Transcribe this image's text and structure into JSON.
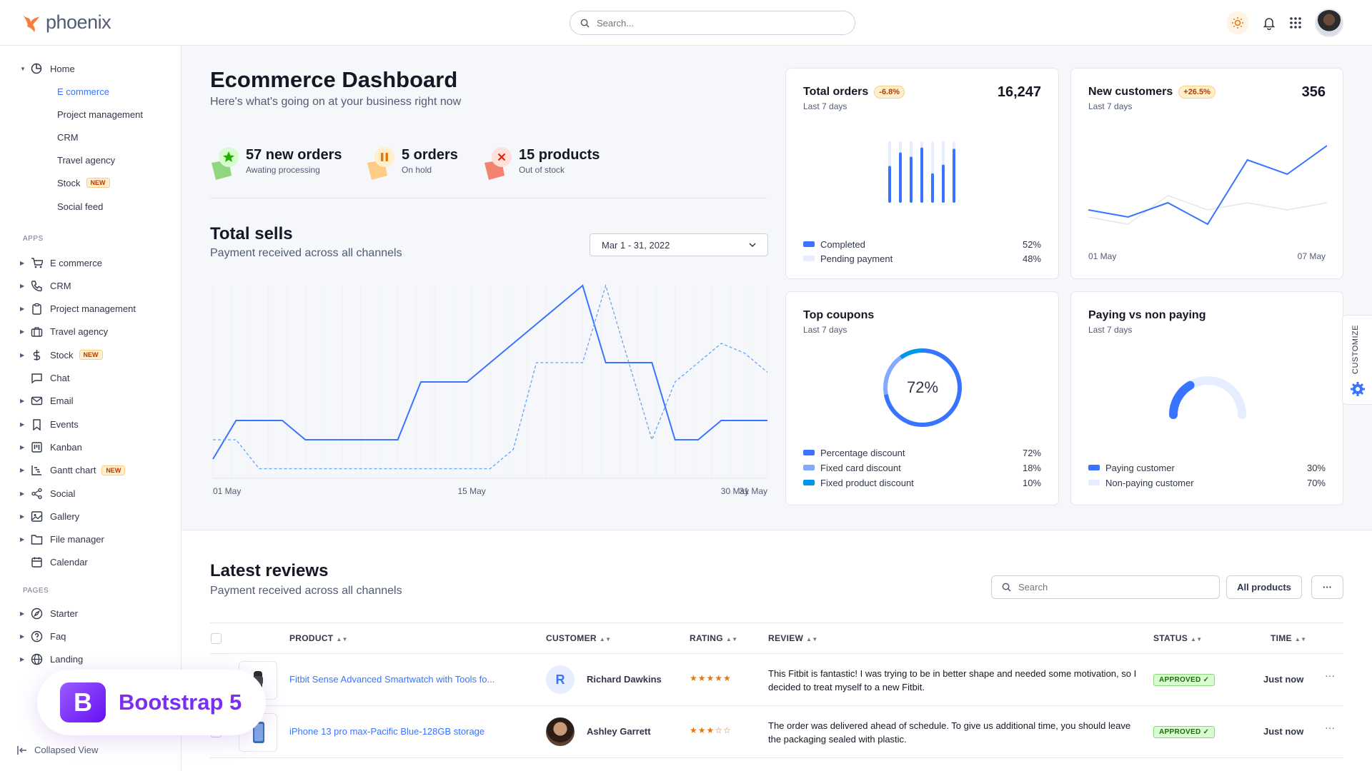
{
  "app": {
    "name": "phoenix"
  },
  "topbar": {
    "search_placeholder": "Search..."
  },
  "sidebar": {
    "home": {
      "label": "Home",
      "items": [
        {
          "label": "E commerce",
          "active": true
        },
        {
          "label": "Project management"
        },
        {
          "label": "CRM"
        },
        {
          "label": "Travel agency"
        },
        {
          "label": "Stock",
          "badge": "NEW"
        },
        {
          "label": "Social feed"
        }
      ]
    },
    "apps_label": "APPS",
    "apps": [
      {
        "label": "E commerce",
        "icon": "cart-icon"
      },
      {
        "label": "CRM",
        "icon": "phone-icon"
      },
      {
        "label": "Project management",
        "icon": "clipboard-icon"
      },
      {
        "label": "Travel agency",
        "icon": "briefcase-icon"
      },
      {
        "label": "Stock",
        "icon": "dollar-icon",
        "badge": "NEW"
      },
      {
        "label": "Chat",
        "icon": "chat-icon"
      },
      {
        "label": "Email",
        "icon": "mail-icon"
      },
      {
        "label": "Events",
        "icon": "bookmark-icon"
      },
      {
        "label": "Kanban",
        "icon": "kanban-icon"
      },
      {
        "label": "Gantt chart",
        "icon": "gantt-icon",
        "badge": "NEW"
      },
      {
        "label": "Social",
        "icon": "share-icon"
      },
      {
        "label": "Gallery",
        "icon": "image-icon"
      },
      {
        "label": "File manager",
        "icon": "folder-icon"
      },
      {
        "label": "Calendar",
        "icon": "calendar-icon"
      }
    ],
    "pages_label": "PAGES",
    "pages": [
      {
        "label": "Starter",
        "icon": "compass-icon"
      },
      {
        "label": "Faq",
        "icon": "help-icon"
      },
      {
        "label": "Landing",
        "icon": "globe-icon"
      }
    ],
    "collapsed_label": "Collapsed View"
  },
  "promo": {
    "logo_letter": "B",
    "label": "Bootstrap 5"
  },
  "dashboard": {
    "title": "Ecommerce Dashboard",
    "subtitle": "Here's what's going on at your business right now",
    "stats": [
      {
        "title": "57 new orders",
        "subtitle": "Awating processing",
        "color": "#25b003",
        "icon": "star-icon"
      },
      {
        "title": "5 orders",
        "subtitle": "On hold",
        "color": "#e5780b",
        "icon": "pause-icon"
      },
      {
        "title": "15 products",
        "subtitle": "Out of stock",
        "color": "#ed2000",
        "icon": "close-icon"
      }
    ],
    "total_sells": {
      "title": "Total sells",
      "subtitle": "Payment received across all channels",
      "date_range": "Mar 1 - 31, 2022"
    }
  },
  "chart_data": [
    {
      "type": "line",
      "title": "Total sells",
      "x_ticks": [
        "01 May",
        "15 May",
        "30 May",
        "31 May"
      ],
      "ylim": [
        0,
        100
      ],
      "grid": true,
      "series": [
        {
          "values": [
            10,
            30,
            30,
            30,
            20,
            20,
            20,
            20,
            20,
            50,
            50,
            50,
            60,
            70,
            80,
            90,
            100,
            60,
            60,
            60,
            20,
            20,
            30,
            30,
            30
          ]
        },
        {
          "values": [
            20,
            20,
            5,
            5,
            5,
            5,
            5,
            5,
            5,
            5,
            5,
            5,
            5,
            15,
            60,
            60,
            60,
            100,
            60,
            20,
            50,
            60,
            70,
            65,
            55
          ]
        }
      ],
      "colors": [
        "#3874ff",
        "#60a5fa"
      ]
    },
    {
      "type": "bar",
      "title": "Total orders",
      "series": [
        {
          "name": "Completed",
          "values": [
            60,
            82,
            75,
            90,
            48,
            62,
            88
          ]
        },
        {
          "name": "Pending payment",
          "values": [
            100,
            100,
            100,
            100,
            100,
            100,
            100
          ]
        }
      ],
      "legend": [
        {
          "label": "Completed",
          "value": "52%",
          "color": "#3874ff"
        },
        {
          "label": "Pending payment",
          "value": "48%",
          "color": "#e5edff"
        }
      ]
    },
    {
      "type": "line",
      "title": "New customers",
      "x_ticks": [
        "01 May",
        "07 May"
      ],
      "series": [
        {
          "values": [
            20,
            15,
            25,
            10,
            55,
            45,
            65
          ]
        },
        {
          "values": [
            15,
            10,
            30,
            20,
            25,
            20,
            25
          ]
        }
      ],
      "colors": [
        "#3874ff",
        "#e3e6ed"
      ]
    },
    {
      "type": "pie",
      "title": "Top coupons",
      "center_label": "72%",
      "slices": [
        {
          "label": "Percentage discount",
          "value": 72,
          "display": "72%",
          "color": "#3874ff"
        },
        {
          "label": "Fixed card discount",
          "value": 18,
          "display": "18%",
          "color": "#85a9ff"
        },
        {
          "label": "Fixed product discount",
          "value": 10,
          "display": "10%",
          "color": "#0097eb"
        }
      ]
    },
    {
      "type": "pie",
      "title": "Paying vs non paying",
      "slices": [
        {
          "label": "Paying customer",
          "value": 30,
          "display": "30%",
          "color": "#3874ff"
        },
        {
          "label": "Non-paying customer",
          "value": 70,
          "display": "70%",
          "color": "#e5edff"
        }
      ]
    }
  ],
  "cards": {
    "total_orders": {
      "title": "Total orders",
      "badge": "-6.8%",
      "sub": "Last 7 days",
      "value": "16,247"
    },
    "new_customers": {
      "title": "New customers",
      "badge": "+26.5%",
      "sub": "Last 7 days",
      "value": "356",
      "x_start": "01 May",
      "x_end": "07 May"
    },
    "top_coupons": {
      "title": "Top coupons",
      "sub": "Last 7 days",
      "center": "72%"
    },
    "paying": {
      "title": "Paying vs non paying",
      "sub": "Last 7 days"
    }
  },
  "customize_label": "CUSTOMIZE",
  "reviews": {
    "title": "Latest reviews",
    "subtitle": "Payment received across all channels",
    "search_placeholder": "Search",
    "filter_label": "All products",
    "more_label": "···",
    "columns": [
      "PRODUCT",
      "CUSTOMER",
      "RATING",
      "REVIEW",
      "STATUS",
      "TIME"
    ],
    "rows": [
      {
        "product": "Fitbit Sense Advanced Smartwatch with Tools fo...",
        "customer": "Richard Dawkins",
        "customer_initial": "R",
        "rating": "★★★★★",
        "review": "This Fitbit is fantastic! I was trying to be in better shape and needed some motivation, so I decided to treat myself to a new Fitbit.",
        "status": "APPROVED ✓",
        "time": "Just now"
      },
      {
        "product": "iPhone 13 pro max-Pacific Blue-128GB storage",
        "customer": "Ashley Garrett",
        "rating": "★★★☆☆",
        "review": "The order was delivered ahead of schedule. To give us additional time, you should leave the packaging sealed with plastic.",
        "status": "APPROVED ✓",
        "time": "Just now"
      }
    ]
  }
}
